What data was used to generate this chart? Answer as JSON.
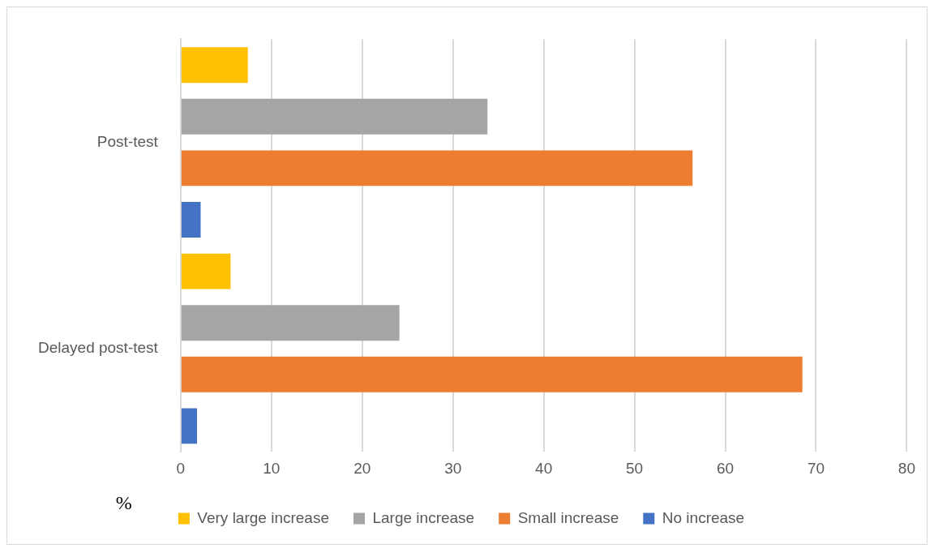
{
  "chart_data": {
    "type": "bar",
    "orientation": "horizontal",
    "categories": [
      "Post-test",
      "Delayed post-test"
    ],
    "xlabel": "%",
    "series": [
      {
        "name": "Very large increase",
        "color": "#ffc000",
        "values": [
          7.4,
          5.5
        ]
      },
      {
        "name": "Large increase",
        "color": "#a5a5a5",
        "values": [
          33.8,
          24.1
        ]
      },
      {
        "name": "Small increase",
        "color": "#ed7d31",
        "values": [
          56.4,
          68.5
        ]
      },
      {
        "name": "No increase",
        "color": "#4472c4",
        "values": [
          2.2,
          1.8
        ]
      }
    ],
    "xlim": [
      0,
      80
    ],
    "xticks": [
      0,
      10,
      20,
      30,
      40,
      50,
      60,
      70,
      80
    ],
    "grid": "x",
    "legend": "bottom"
  }
}
